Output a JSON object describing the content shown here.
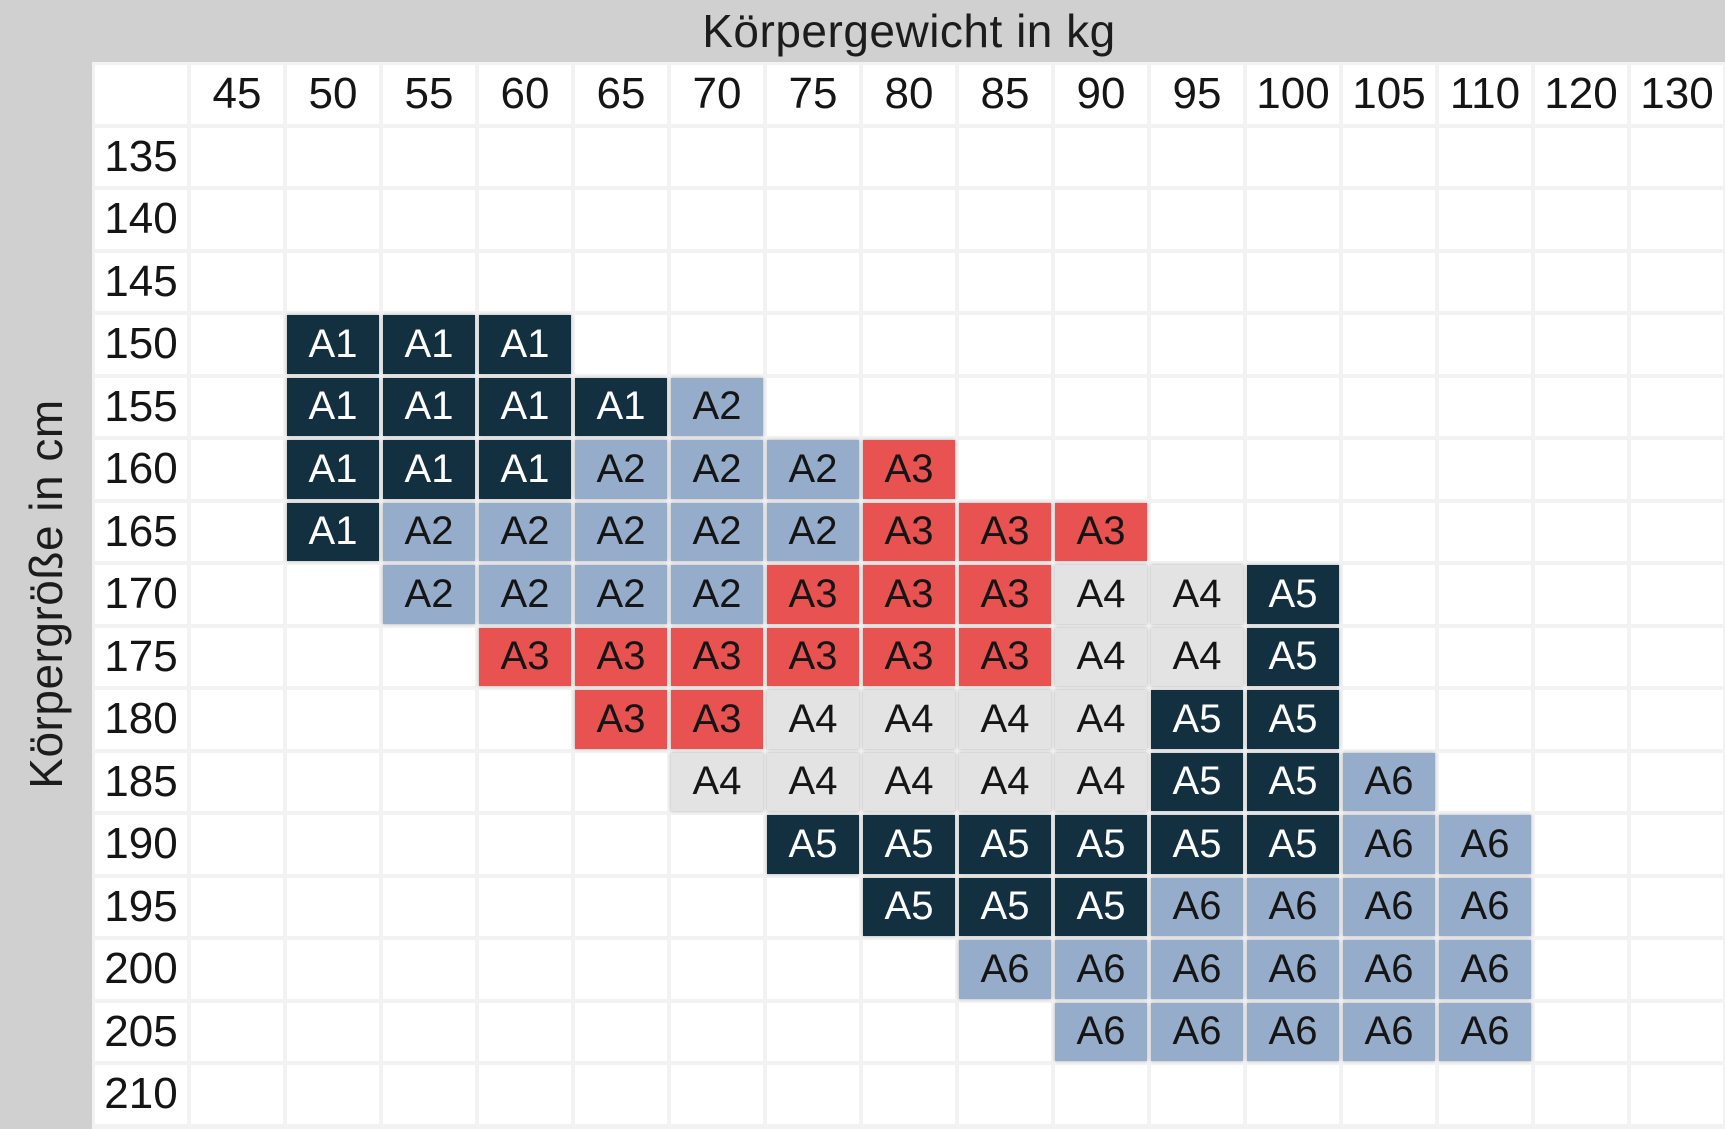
{
  "chart_data": {
    "type": "heatmap",
    "xlabel": "Körpergewicht in kg",
    "ylabel": "Körpergröße in cm",
    "x_categories": [
      "45",
      "50",
      "55",
      "60",
      "65",
      "70",
      "75",
      "80",
      "85",
      "90",
      "95",
      "100",
      "105",
      "110",
      "120",
      "130"
    ],
    "y_categories": [
      "135",
      "140",
      "145",
      "150",
      "155",
      "160",
      "165",
      "170",
      "175",
      "180",
      "185",
      "190",
      "195",
      "200",
      "205",
      "210"
    ],
    "legend_sizes": [
      "A1",
      "A2",
      "A3",
      "A4",
      "A5",
      "A6"
    ],
    "rows": [
      {
        "label": "135",
        "values": [
          "",
          "",
          "",
          "",
          "",
          "",
          "",
          "",
          "",
          "",
          "",
          "",
          "",
          "",
          "",
          ""
        ]
      },
      {
        "label": "140",
        "values": [
          "",
          "",
          "",
          "",
          "",
          "",
          "",
          "",
          "",
          "",
          "",
          "",
          "",
          "",
          "",
          ""
        ]
      },
      {
        "label": "145",
        "values": [
          "",
          "",
          "",
          "",
          "",
          "",
          "",
          "",
          "",
          "",
          "",
          "",
          "",
          "",
          "",
          ""
        ]
      },
      {
        "label": "150",
        "values": [
          "",
          "A1",
          "A1",
          "A1",
          "",
          "",
          "",
          "",
          "",
          "",
          "",
          "",
          "",
          "",
          "",
          ""
        ]
      },
      {
        "label": "155",
        "values": [
          "",
          "A1",
          "A1",
          "A1",
          "A1",
          "A2",
          "",
          "",
          "",
          "",
          "",
          "",
          "",
          "",
          "",
          ""
        ]
      },
      {
        "label": "160",
        "values": [
          "",
          "A1",
          "A1",
          "A1",
          "A2",
          "A2",
          "A2",
          "A3",
          "",
          "",
          "",
          "",
          "",
          "",
          "",
          ""
        ]
      },
      {
        "label": "165",
        "values": [
          "",
          "A1",
          "A2",
          "A2",
          "A2",
          "A2",
          "A2",
          "A3",
          "A3",
          "A3",
          "",
          "",
          "",
          "",
          "",
          ""
        ]
      },
      {
        "label": "170",
        "values": [
          "",
          "",
          "A2",
          "A2",
          "A2",
          "A2",
          "A3",
          "A3",
          "A3",
          "A4",
          "A4",
          "A5",
          "",
          "",
          "",
          ""
        ]
      },
      {
        "label": "175",
        "values": [
          "",
          "",
          "",
          "A3",
          "A3",
          "A3",
          "A3",
          "A3",
          "A3",
          "A4",
          "A4",
          "A5",
          "",
          "",
          "",
          ""
        ]
      },
      {
        "label": "180",
        "values": [
          "",
          "",
          "",
          "",
          "A3",
          "A3",
          "A4",
          "A4",
          "A4",
          "A4",
          "A5",
          "A5",
          "",
          "",
          "",
          ""
        ]
      },
      {
        "label": "185",
        "values": [
          "",
          "",
          "",
          "",
          "",
          "A4",
          "A4",
          "A4",
          "A4",
          "A4",
          "A5",
          "A5",
          "A6",
          "",
          "",
          ""
        ]
      },
      {
        "label": "190",
        "values": [
          "",
          "",
          "",
          "",
          "",
          "",
          "A5",
          "A5",
          "A5",
          "A5",
          "A5",
          "A5",
          "A6",
          "A6",
          "",
          ""
        ]
      },
      {
        "label": "195",
        "values": [
          "",
          "",
          "",
          "",
          "",
          "",
          "",
          "A5",
          "A5",
          "A5",
          "A6",
          "A6",
          "A6",
          "A6",
          "",
          ""
        ]
      },
      {
        "label": "200",
        "values": [
          "",
          "",
          "",
          "",
          "",
          "",
          "",
          "",
          "A6",
          "A6",
          "A6",
          "A6",
          "A6",
          "A6",
          "",
          ""
        ]
      },
      {
        "label": "205",
        "values": [
          "",
          "",
          "",
          "",
          "",
          "",
          "",
          "",
          "",
          "A6",
          "A6",
          "A6",
          "A6",
          "A6",
          "",
          ""
        ]
      },
      {
        "label": "210",
        "values": [
          "",
          "",
          "",
          "",
          "",
          "",
          "",
          "",
          "",
          "",
          "",
          "",
          "",
          "",
          "",
          ""
        ]
      }
    ],
    "cell_styles": {
      "A1": {
        "bg": "#133041",
        "fg": "#ffffff"
      },
      "A2": {
        "bg": "#95adca",
        "fg": "#151515"
      },
      "A3": {
        "bg": "#e85250",
        "fg": "#151515"
      },
      "A4": {
        "bg": "#e3e3e3",
        "fg": "#151515"
      },
      "A5": {
        "bg": "#133041",
        "fg": "#ffffff"
      },
      "A6": {
        "bg": "#95adca",
        "fg": "#151515"
      }
    },
    "layout": {
      "grid_lines": "light gaps between cells",
      "band_color": "#d0d0d0",
      "page_bg": "#f2f2f2",
      "empty_cell_bg": "#ffffff",
      "x_axis_position": "top",
      "y_axis_position": "left"
    }
  }
}
